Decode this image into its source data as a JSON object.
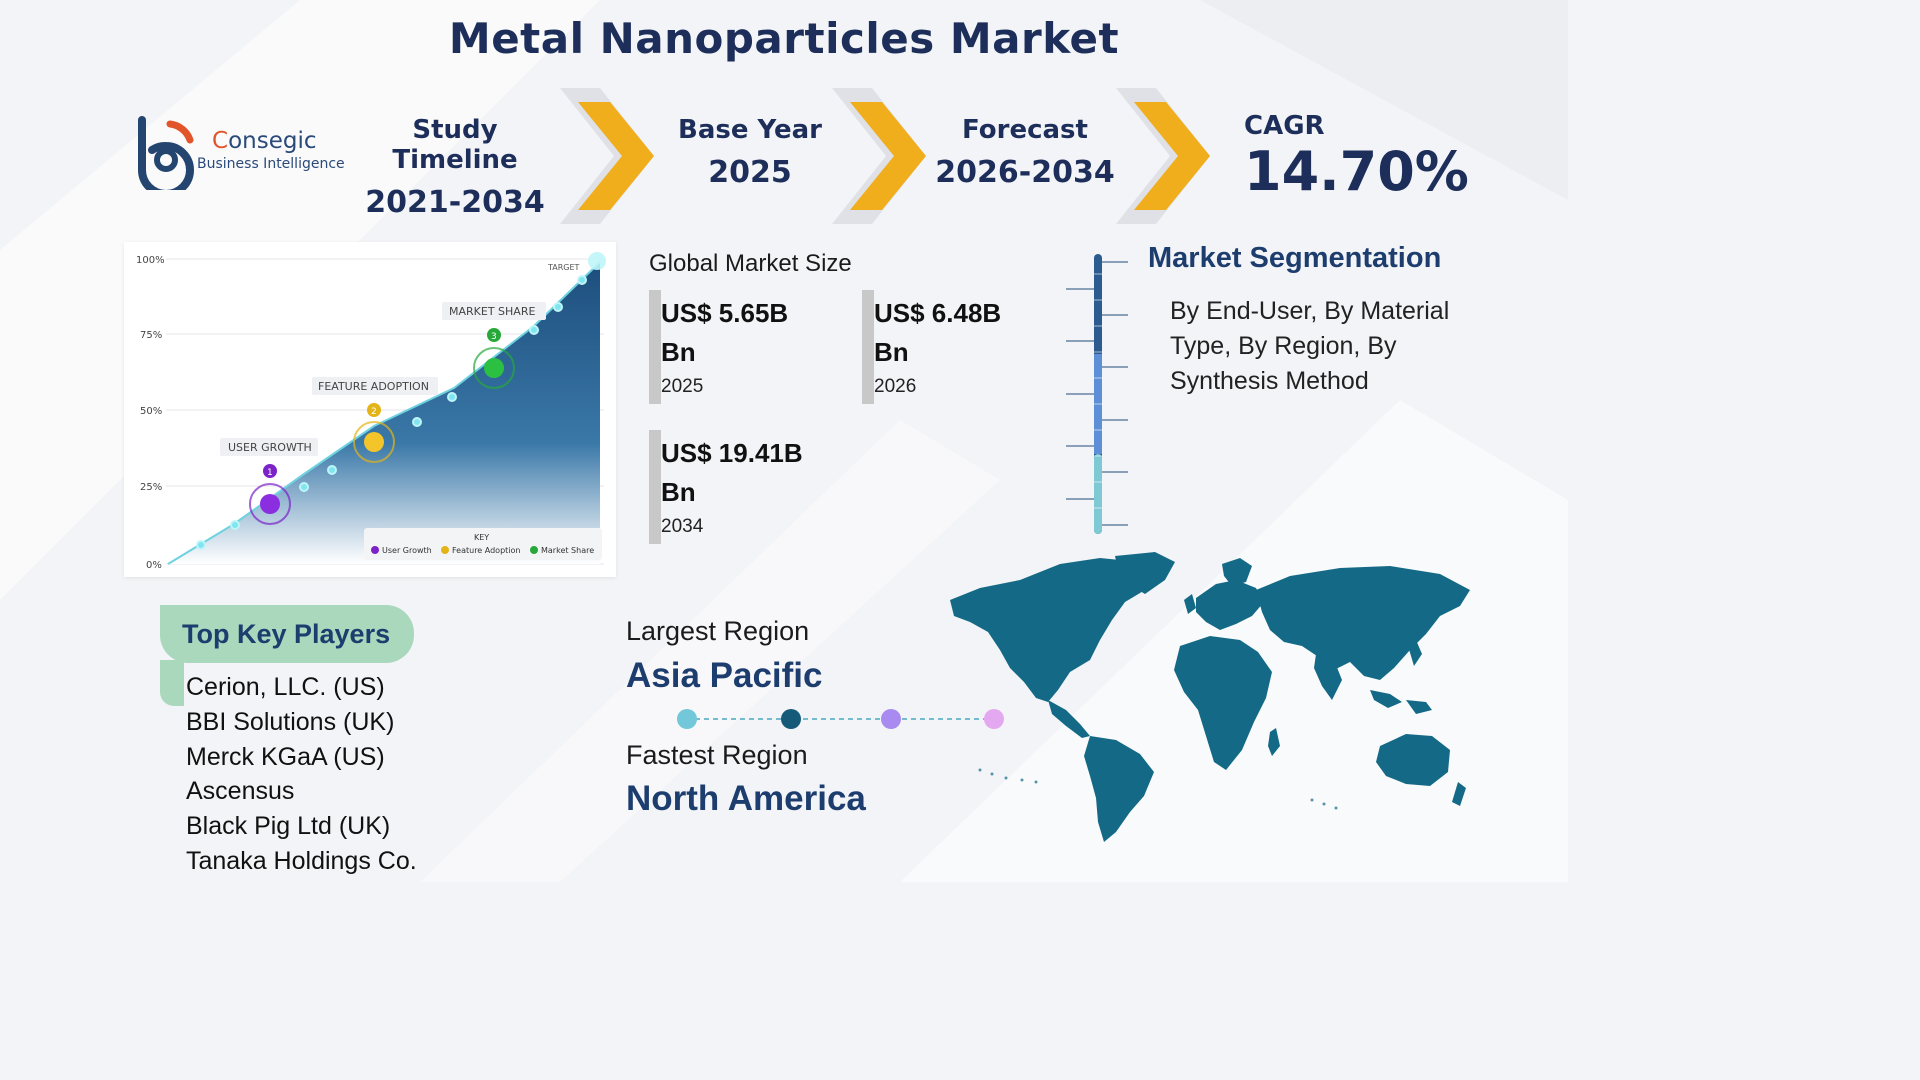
{
  "title": "Metal Nanoparticles Market",
  "logo": {
    "name_first": "C",
    "name_rest": "onsegic",
    "subtitle": "Business Intelligence"
  },
  "timeline": {
    "study_label": "Study Timeline",
    "study_value": "2021-2034",
    "base_label": "Base Year",
    "base_value": "2025",
    "forecast_label": "Forecast",
    "forecast_value": "2026-2034",
    "cagr_label": "CAGR",
    "cagr_value": "14.70%"
  },
  "illustration": {
    "y_ticks": [
      "100%",
      "75%",
      "50%",
      "25%",
      "0%"
    ],
    "target_label": "TARGET",
    "milestones": [
      {
        "num": "1",
        "label": "USER GROWTH",
        "color": "#7b22c9"
      },
      {
        "num": "2",
        "label": "FEATURE ADOPTION",
        "color": "#e3b417"
      },
      {
        "num": "3",
        "label": "MARKET SHARE",
        "color": "#27a93a"
      }
    ],
    "key_title": "KEY",
    "key_items": [
      "User Growth",
      "Feature Adoption",
      "Market Share"
    ]
  },
  "market_size": {
    "title": "Global Market Size",
    "items": [
      {
        "value": "US$ 5.65B Bn",
        "year": "2025"
      },
      {
        "value": "US$ 6.48B Bn",
        "year": "2026"
      },
      {
        "value": "US$ 19.41B Bn",
        "year": "2034"
      }
    ]
  },
  "segmentation": {
    "title": "Market Segmentation",
    "text": "By End-User, By Material Type, By Region, By Synthesis Method"
  },
  "players": {
    "title": "Top Key Players",
    "items": [
      "Cerion, LLC. (US)",
      "BBI Solutions (UK)",
      "Merck KGaA (US)",
      "Ascensus",
      "Black Pig Ltd (UK)",
      "Tanaka Holdings Co."
    ]
  },
  "regions": {
    "largest_label": "Largest Region",
    "largest_value": "Asia Pacific",
    "fastest_label": "Fastest Region",
    "fastest_value": "North America"
  },
  "colors": {
    "navy": "#1c2e59",
    "chevron": "#f0ad1c",
    "map": "#146a86",
    "tab": "#a9d8bd"
  }
}
